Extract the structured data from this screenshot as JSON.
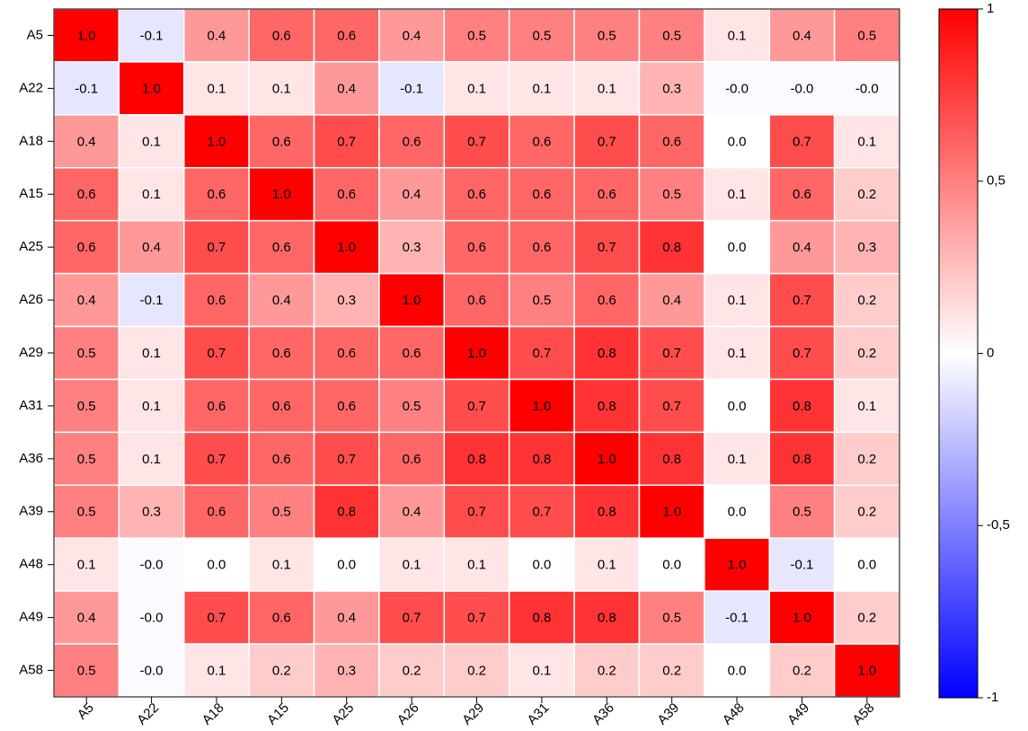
{
  "chart_data": {
    "type": "heatmap",
    "x_categories": [
      "A5",
      "A22",
      "A18",
      "A15",
      "A25",
      "A26",
      "A29",
      "A31",
      "A36",
      "A39",
      "A48",
      "A49",
      "A58"
    ],
    "y_categories": [
      "A5",
      "A22",
      "A18",
      "A15",
      "A25",
      "A26",
      "A29",
      "A31",
      "A36",
      "A39",
      "A48",
      "A49",
      "A58"
    ],
    "values": [
      [
        1,
        -0.1,
        0.4,
        0.6,
        0.6,
        0.4,
        0.5,
        0.5,
        0.5,
        0.5,
        0.1,
        0.4,
        0.5
      ],
      [
        -0.1,
        1,
        0.1,
        0.1,
        0.4,
        -0.1,
        0.1,
        0.1,
        0.1,
        0.3,
        -0.02,
        -0.02,
        -0.02
      ],
      [
        0.4,
        0.1,
        1,
        0.6,
        0.7,
        0.6,
        0.7,
        0.6,
        0.7,
        0.6,
        0,
        0.7,
        0.1
      ],
      [
        0.6,
        0.1,
        0.6,
        1,
        0.6,
        0.4,
        0.6,
        0.6,
        0.6,
        0.5,
        0.1,
        0.6,
        0.2
      ],
      [
        0.6,
        0.4,
        0.7,
        0.6,
        1,
        0.3,
        0.6,
        0.6,
        0.7,
        0.8,
        0,
        0.4,
        0.3
      ],
      [
        0.4,
        -0.1,
        0.6,
        0.4,
        0.3,
        1,
        0.6,
        0.5,
        0.6,
        0.4,
        0.1,
        0.7,
        0.2
      ],
      [
        0.5,
        0.1,
        0.7,
        0.6,
        0.6,
        0.6,
        1,
        0.7,
        0.8,
        0.7,
        0.1,
        0.7,
        0.2
      ],
      [
        0.5,
        0.1,
        0.6,
        0.6,
        0.6,
        0.5,
        0.7,
        1,
        0.8,
        0.7,
        0,
        0.8,
        0.1
      ],
      [
        0.5,
        0.1,
        0.7,
        0.6,
        0.7,
        0.6,
        0.8,
        0.8,
        1,
        0.8,
        0.1,
        0.8,
        0.2
      ],
      [
        0.5,
        0.3,
        0.6,
        0.5,
        0.8,
        0.4,
        0.7,
        0.7,
        0.8,
        1,
        0,
        0.5,
        0.2
      ],
      [
        0.1,
        -0.02,
        0,
        0.1,
        0,
        0.1,
        0.1,
        0,
        0.1,
        0,
        1,
        -0.1,
        0
      ],
      [
        0.4,
        -0.02,
        0.7,
        0.6,
        0.4,
        0.7,
        0.7,
        0.8,
        0.8,
        0.5,
        -0.1,
        1,
        0.2
      ],
      [
        0.5,
        -0.02,
        0.1,
        0.2,
        0.3,
        0.2,
        0.2,
        0.1,
        0.2,
        0.2,
        0,
        0.2,
        1
      ]
    ],
    "value_labels": [
      [
        "1.0",
        "-0.1",
        "0.4",
        "0.6",
        "0.6",
        "0.4",
        "0.5",
        "0.5",
        "0.5",
        "0.5",
        "0.1",
        "0.4",
        "0.5"
      ],
      [
        "-0.1",
        "1.0",
        "0.1",
        "0.1",
        "0.4",
        "-0.1",
        "0.1",
        "0.1",
        "0.1",
        "0.3",
        "-0.0",
        "-0.0",
        "-0.0"
      ],
      [
        "0.4",
        "0.1",
        "1.0",
        "0.6",
        "0.7",
        "0.6",
        "0.7",
        "0.6",
        "0.7",
        "0.6",
        "0.0",
        "0.7",
        "0.1"
      ],
      [
        "0.6",
        "0.1",
        "0.6",
        "1.0",
        "0.6",
        "0.4",
        "0.6",
        "0.6",
        "0.6",
        "0.5",
        "0.1",
        "0.6",
        "0.2"
      ],
      [
        "0.6",
        "0.4",
        "0.7",
        "0.6",
        "1.0",
        "0.3",
        "0.6",
        "0.6",
        "0.7",
        "0.8",
        "0.0",
        "0.4",
        "0.3"
      ],
      [
        "0.4",
        "-0.1",
        "0.6",
        "0.4",
        "0.3",
        "1.0",
        "0.6",
        "0.5",
        "0.6",
        "0.4",
        "0.1",
        "0.7",
        "0.2"
      ],
      [
        "0.5",
        "0.1",
        "0.7",
        "0.6",
        "0.6",
        "0.6",
        "1.0",
        "0.7",
        "0.8",
        "0.7",
        "0.1",
        "0.7",
        "0.2"
      ],
      [
        "0.5",
        "0.1",
        "0.6",
        "0.6",
        "0.6",
        "0.5",
        "0.7",
        "1.0",
        "0.8",
        "0.7",
        "0.0",
        "0.8",
        "0.1"
      ],
      [
        "0.5",
        "0.1",
        "0.7",
        "0.6",
        "0.7",
        "0.6",
        "0.8",
        "0.8",
        "1.0",
        "0.8",
        "0.1",
        "0.8",
        "0.2"
      ],
      [
        "0.5",
        "0.3",
        "0.6",
        "0.5",
        "0.8",
        "0.4",
        "0.7",
        "0.7",
        "0.8",
        "1.0",
        "0.0",
        "0.5",
        "0.2"
      ],
      [
        "0.1",
        "-0.0",
        "0.0",
        "0.1",
        "0.0",
        "0.1",
        "0.1",
        "0.0",
        "0.1",
        "0.0",
        "1.0",
        "-0.1",
        "0.0"
      ],
      [
        "0.4",
        "-0.0",
        "0.7",
        "0.6",
        "0.4",
        "0.7",
        "0.7",
        "0.8",
        "0.8",
        "0.5",
        "-0.1",
        "1.0",
        "0.2"
      ],
      [
        "0.5",
        "-0.0",
        "0.1",
        "0.2",
        "0.3",
        "0.2",
        "0.2",
        "0.1",
        "0.2",
        "0.2",
        "0.0",
        "0.2",
        "1.0"
      ]
    ],
    "colors": {
      "low": "#0000ff",
      "mid": "#ffffff",
      "high": "#ff0000"
    },
    "zlim": [
      -1,
      1
    ],
    "zticks": [
      1,
      {
        "value": 0.5,
        "label": "0,5"
      },
      0,
      {
        "value": -0.5,
        "label": "-0,5"
      },
      -1
    ]
  }
}
